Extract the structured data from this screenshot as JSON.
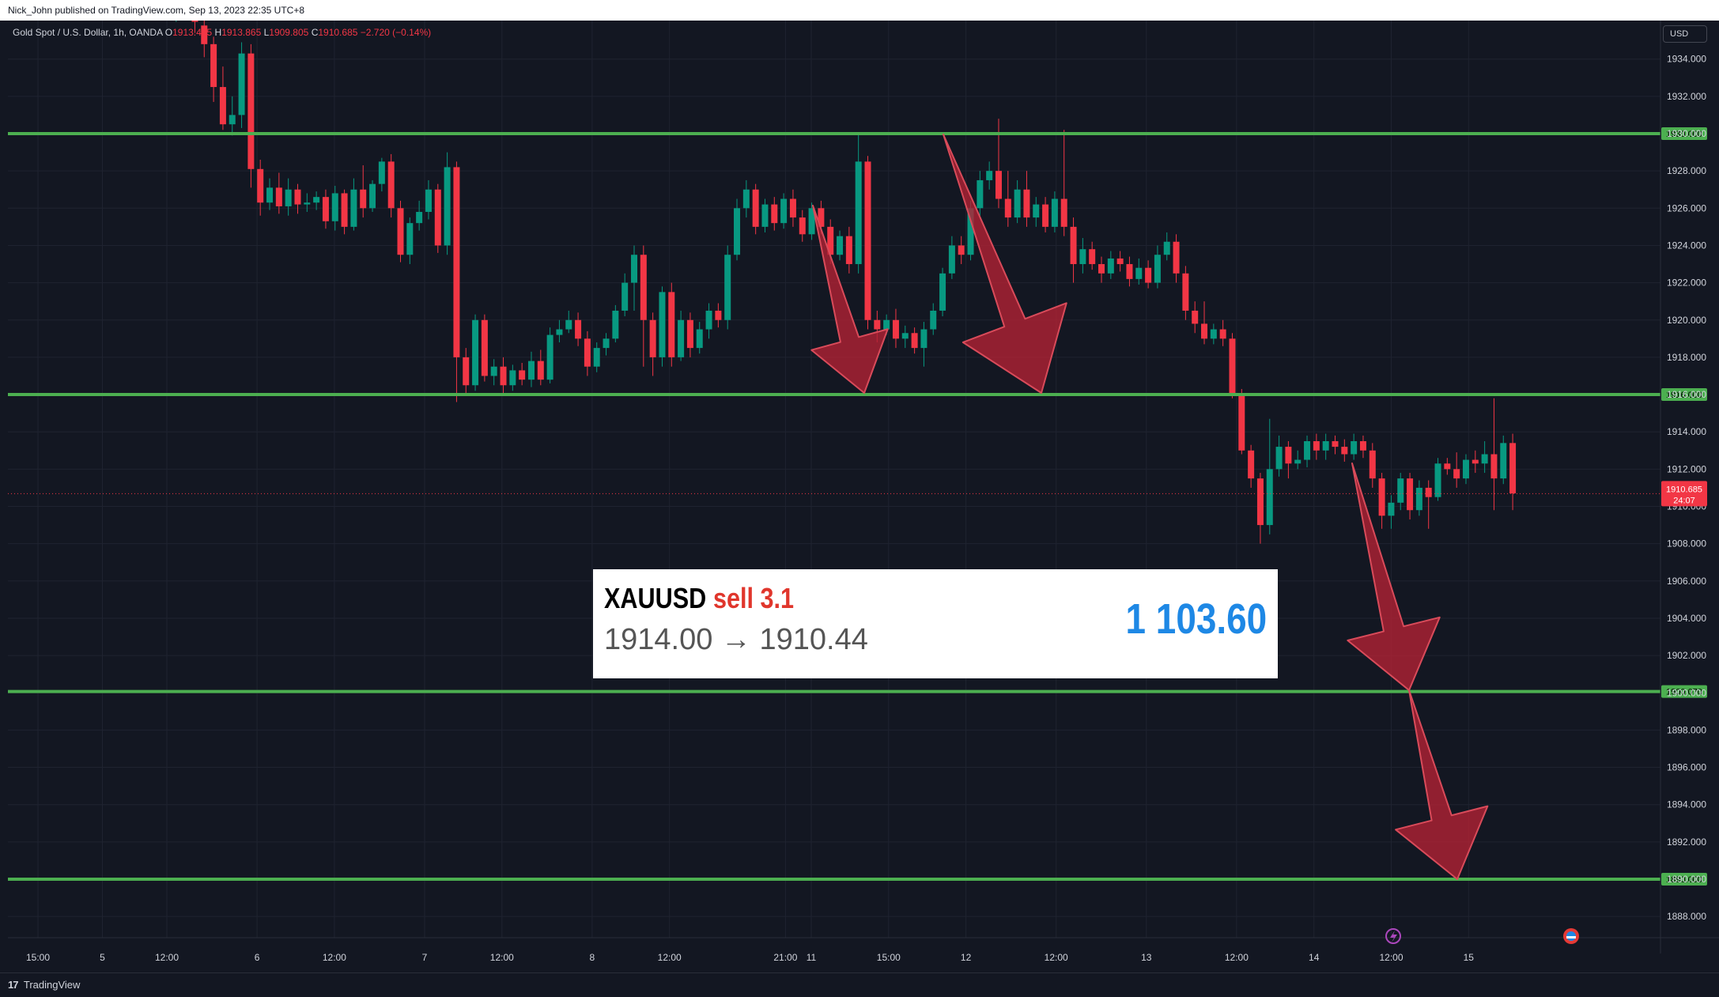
{
  "header": {
    "publisher_line": "Nick_John published on TradingView.com, Sep 13, 2023 22:35 UTC+8",
    "symbol_name": "Gold Spot / U.S. Dollar, 1h, OANDA",
    "o_label": "O",
    "o_value": "1913.405",
    "h_label": "H",
    "h_value": "1913.865",
    "l_label": "L",
    "l_value": "1909.805",
    "c_label": "C",
    "c_value": "1910.685",
    "change": "−2.720 (−0.14%)",
    "currency": "USD"
  },
  "footer": {
    "brand": "TradingView",
    "logo": "17"
  },
  "trade": {
    "symbol": "XAUUSD",
    "side": "sell 3.1",
    "prices": "1914.00 → 1910.44",
    "pnl": "1 103.60"
  },
  "colors": {
    "background": "#131722",
    "up": "#089981",
    "down": "#f23645",
    "level_line": "#4caf50",
    "arrow": "#b22234",
    "text": "#d1d4dc"
  },
  "chart_data": {
    "type": "candlestick",
    "instrument": "XAUUSD",
    "timeframe": "1h",
    "ylim": [
      1886.8,
      1935.0
    ],
    "y_ticks": [
      "1934.000",
      "1932.000",
      "1930.000",
      "1928.000",
      "1926.000",
      "1924.000",
      "1922.000",
      "1920.000",
      "1918.000",
      "1916.000",
      "1914.000",
      "1912.000",
      "1910.000",
      "1908.000",
      "1906.000",
      "1904.000",
      "1902.000",
      "1900.000",
      "1898.000",
      "1896.000",
      "1894.000",
      "1892.000",
      "1890.000",
      "1888.000"
    ],
    "x_ticks": [
      {
        "label": "15:00",
        "i": 0
      },
      {
        "label": "5",
        "i": 5
      },
      {
        "label": "12:00",
        "i": 10
      },
      {
        "label": "6",
        "i": 17
      },
      {
        "label": "12:00",
        "i": 23
      },
      {
        "label": "7",
        "i": 30
      },
      {
        "label": "12:00",
        "i": 36
      },
      {
        "label": "8",
        "i": 43
      },
      {
        "label": "12:00",
        "i": 49
      },
      {
        "label": "21:00",
        "i": 58
      },
      {
        "label": "11",
        "i": 60
      },
      {
        "label": "15:00",
        "i": 66
      },
      {
        "label": "12",
        "i": 72
      },
      {
        "label": "12:00",
        "i": 79
      },
      {
        "label": "13",
        "i": 86
      },
      {
        "label": "12:00",
        "i": 93
      },
      {
        "label": "14",
        "i": 99
      },
      {
        "label": "12:00",
        "i": 105
      },
      {
        "label": "15",
        "i": 111
      }
    ],
    "horizontal_levels": [
      {
        "price": 1930.0,
        "label": "1930.000"
      },
      {
        "price": 1916.0,
        "label": "1916.000"
      },
      {
        "price": 1900.07,
        "label": "1900.070"
      },
      {
        "price": 1890.0,
        "label": "1890.000"
      }
    ],
    "last_price": {
      "price": 1910.685,
      "label": "1910.685",
      "countdown": "24:07"
    },
    "candles": [
      [
        1937.0,
        1936.5,
        1937.6,
        1936.1
      ],
      [
        1936.5,
        1936.8,
        1937.5,
        1936.0
      ],
      [
        1936.8,
        1936.6,
        1937.3,
        1936.1
      ],
      [
        1936.6,
        1936.0,
        1937.1,
        1935.4
      ],
      [
        1935.8,
        1934.8,
        1936.6,
        1934.1
      ],
      [
        1934.8,
        1932.5,
        1935.2,
        1931.7
      ],
      [
        1932.5,
        1930.5,
        1933.6,
        1930.2
      ],
      [
        1930.5,
        1931.0,
        1932.0,
        1929.9
      ],
      [
        1931.0,
        1934.3,
        1934.9,
        1930.3
      ],
      [
        1934.3,
        1928.1,
        1934.8,
        1927.1
      ],
      [
        1928.1,
        1926.3,
        1928.6,
        1925.6
      ],
      [
        1926.3,
        1927.1,
        1927.6,
        1925.9
      ],
      [
        1927.1,
        1926.1,
        1927.9,
        1925.7
      ],
      [
        1926.1,
        1927.0,
        1927.6,
        1925.6
      ],
      [
        1927.0,
        1926.2,
        1927.3,
        1925.7
      ],
      [
        1926.2,
        1926.3,
        1926.8,
        1925.8
      ],
      [
        1926.3,
        1926.6,
        1926.9,
        1925.9
      ],
      [
        1926.6,
        1925.3,
        1927.0,
        1924.9
      ],
      [
        1925.3,
        1926.8,
        1927.2,
        1924.8
      ],
      [
        1926.8,
        1925.0,
        1927.0,
        1924.6
      ],
      [
        1925.0,
        1927.0,
        1927.6,
        1924.8
      ],
      [
        1927.0,
        1926.0,
        1928.3,
        1925.5
      ],
      [
        1926.0,
        1927.3,
        1927.5,
        1925.8
      ],
      [
        1927.3,
        1928.5,
        1928.7,
        1926.9
      ],
      [
        1928.5,
        1926.0,
        1928.9,
        1925.5
      ],
      [
        1926.0,
        1923.5,
        1926.4,
        1923.1
      ],
      [
        1923.5,
        1925.2,
        1925.5,
        1923.0
      ],
      [
        1925.2,
        1925.8,
        1926.4,
        1924.8
      ],
      [
        1925.8,
        1927.0,
        1927.5,
        1925.4
      ],
      [
        1927.0,
        1924.0,
        1927.3,
        1923.6
      ],
      [
        1924.0,
        1928.2,
        1929.0,
        1923.5
      ],
      [
        1928.2,
        1918.0,
        1928.5,
        1915.6
      ],
      [
        1918.0,
        1916.5,
        1918.5,
        1916.0
      ],
      [
        1916.5,
        1920.0,
        1920.3,
        1916.2
      ],
      [
        1920.0,
        1917.0,
        1920.3,
        1916.7
      ],
      [
        1917.0,
        1917.5,
        1917.9,
        1916.5
      ],
      [
        1917.5,
        1916.5,
        1918.0,
        1916.0
      ],
      [
        1916.5,
        1917.3,
        1917.6,
        1916.2
      ],
      [
        1917.3,
        1916.8,
        1917.7,
        1916.5
      ],
      [
        1916.8,
        1917.8,
        1918.3,
        1916.4
      ],
      [
        1917.8,
        1916.8,
        1918.4,
        1916.5
      ],
      [
        1916.8,
        1919.2,
        1919.6,
        1916.6
      ],
      [
        1919.2,
        1919.5,
        1920.0,
        1918.8
      ],
      [
        1919.5,
        1920.0,
        1920.5,
        1919.3
      ],
      [
        1920.0,
        1919.0,
        1920.4,
        1918.6
      ],
      [
        1919.0,
        1917.5,
        1919.4,
        1917.0
      ],
      [
        1917.5,
        1918.5,
        1918.8,
        1917.2
      ],
      [
        1918.5,
        1919.0,
        1919.3,
        1918.1
      ],
      [
        1919.0,
        1920.5,
        1920.8,
        1918.8
      ],
      [
        1920.5,
        1922.0,
        1922.5,
        1920.2
      ],
      [
        1922.0,
        1923.5,
        1924.0,
        1920.5
      ],
      [
        1923.5,
        1920.0,
        1924.0,
        1917.5
      ],
      [
        1920.0,
        1918.0,
        1920.4,
        1917.0
      ],
      [
        1918.0,
        1921.5,
        1921.8,
        1917.5
      ],
      [
        1921.5,
        1918.0,
        1922.0,
        1917.5
      ],
      [
        1918.0,
        1920.0,
        1920.5,
        1917.8
      ],
      [
        1920.0,
        1918.5,
        1920.4,
        1918.0
      ],
      [
        1918.5,
        1919.5,
        1919.9,
        1918.2
      ],
      [
        1919.5,
        1920.5,
        1920.9,
        1919.0
      ],
      [
        1920.5,
        1920.0,
        1920.9,
        1919.6
      ],
      [
        1920.0,
        1923.5,
        1924.0,
        1919.5
      ],
      [
        1923.5,
        1926.0,
        1926.5,
        1923.2
      ],
      [
        1926.0,
        1927.0,
        1927.5,
        1925.5
      ],
      [
        1927.0,
        1925.0,
        1927.3,
        1924.6
      ],
      [
        1925.0,
        1926.2,
        1926.5,
        1924.7
      ],
      [
        1926.2,
        1925.2,
        1926.6,
        1924.8
      ],
      [
        1925.2,
        1926.5,
        1926.8,
        1924.9
      ],
      [
        1926.5,
        1925.5,
        1927.0,
        1925.0
      ],
      [
        1925.5,
        1924.6,
        1925.9,
        1924.2
      ],
      [
        1924.6,
        1926.0,
        1926.3,
        1924.3
      ],
      [
        1926.0,
        1925.0,
        1926.4,
        1924.6
      ],
      [
        1925.0,
        1923.5,
        1925.4,
        1923.0
      ],
      [
        1923.5,
        1924.5,
        1924.8,
        1923.2
      ],
      [
        1924.5,
        1923.0,
        1925.0,
        1922.5
      ],
      [
        1923.0,
        1928.5,
        1930.0,
        1922.5
      ],
      [
        1928.5,
        1920.0,
        1928.8,
        1919.5
      ],
      [
        1920.0,
        1919.5,
        1920.5,
        1918.8
      ],
      [
        1919.5,
        1920.0,
        1920.3,
        1919.2
      ],
      [
        1920.0,
        1919.0,
        1920.6,
        1918.5
      ],
      [
        1919.0,
        1919.3,
        1919.7,
        1918.5
      ],
      [
        1919.3,
        1918.5,
        1919.6,
        1918.2
      ],
      [
        1918.5,
        1919.5,
        1919.9,
        1917.5
      ],
      [
        1919.5,
        1920.5,
        1920.9,
        1919.2
      ],
      [
        1920.5,
        1922.5,
        1922.8,
        1920.2
      ],
      [
        1922.5,
        1924.0,
        1924.5,
        1922.2
      ],
      [
        1924.0,
        1923.5,
        1924.5,
        1923.0
      ],
      [
        1923.5,
        1926.0,
        1926.4,
        1923.2
      ],
      [
        1926.0,
        1927.5,
        1928.0,
        1925.6
      ],
      [
        1927.5,
        1928.0,
        1928.5,
        1927.0
      ],
      [
        1928.0,
        1926.5,
        1930.8,
        1926.0
      ],
      [
        1926.5,
        1925.5,
        1928.0,
        1925.0
      ],
      [
        1925.5,
        1927.0,
        1927.5,
        1925.2
      ],
      [
        1927.0,
        1925.5,
        1928.0,
        1925.0
      ],
      [
        1925.5,
        1926.2,
        1926.6,
        1925.0
      ],
      [
        1926.2,
        1925.0,
        1926.6,
        1924.7
      ],
      [
        1925.0,
        1926.5,
        1926.9,
        1924.7
      ],
      [
        1926.5,
        1925.0,
        1930.2,
        1924.5
      ],
      [
        1925.0,
        1923.0,
        1925.5,
        1922.0
      ],
      [
        1923.0,
        1923.8,
        1924.4,
        1922.5
      ],
      [
        1923.8,
        1923.0,
        1924.2,
        1922.7
      ],
      [
        1923.0,
        1922.5,
        1923.4,
        1922.0
      ],
      [
        1922.5,
        1923.3,
        1923.7,
        1922.2
      ],
      [
        1923.3,
        1923.0,
        1923.7,
        1922.6
      ],
      [
        1923.0,
        1922.2,
        1923.4,
        1921.8
      ],
      [
        1922.2,
        1922.8,
        1923.3,
        1921.9
      ],
      [
        1922.8,
        1922.0,
        1923.2,
        1921.7
      ],
      [
        1922.0,
        1923.5,
        1924.0,
        1921.7
      ],
      [
        1923.5,
        1924.2,
        1924.7,
        1923.2
      ],
      [
        1924.2,
        1922.5,
        1924.6,
        1922.0
      ],
      [
        1922.5,
        1920.5,
        1922.9,
        1920.0
      ],
      [
        1920.5,
        1919.8,
        1921.0,
        1919.3
      ],
      [
        1919.8,
        1919.0,
        1921.0,
        1918.7
      ],
      [
        1919.0,
        1919.5,
        1919.8,
        1918.7
      ],
      [
        1919.5,
        1919.0,
        1920.0,
        1918.6
      ],
      [
        1919.0,
        1916.0,
        1919.3,
        1915.8
      ],
      [
        1916.0,
        1913.0,
        1916.3,
        1912.8
      ],
      [
        1913.0,
        1911.5,
        1913.3,
        1911.0
      ],
      [
        1911.5,
        1909.0,
        1911.8,
        1908.0
      ],
      [
        1909.0,
        1912.0,
        1914.7,
        1908.5
      ],
      [
        1912.0,
        1913.2,
        1913.8,
        1911.6
      ],
      [
        1913.2,
        1912.3,
        1913.5,
        1911.5
      ],
      [
        1912.3,
        1912.5,
        1913.0,
        1912.0
      ],
      [
        1912.5,
        1913.5,
        1913.8,
        1912.1
      ],
      [
        1913.5,
        1913.0,
        1913.9,
        1912.5
      ],
      [
        1913.0,
        1913.5,
        1913.9,
        1912.5
      ],
      [
        1913.5,
        1913.2,
        1913.8,
        1912.8
      ],
      [
        1913.2,
        1912.8,
        1913.6,
        1912.4
      ],
      [
        1912.8,
        1913.5,
        1913.9,
        1912.5
      ],
      [
        1913.5,
        1913.0,
        1913.8,
        1912.6
      ],
      [
        1913.0,
        1911.5,
        1913.4,
        1911.0
      ],
      [
        1911.5,
        1909.5,
        1911.8,
        1908.8
      ],
      [
        1909.5,
        1910.2,
        1910.6,
        1908.8
      ],
      [
        1910.2,
        1911.5,
        1911.8,
        1909.8
      ],
      [
        1911.5,
        1909.8,
        1911.8,
        1909.3
      ],
      [
        1909.8,
        1911.0,
        1911.4,
        1909.5
      ],
      [
        1911.0,
        1910.5,
        1911.4,
        1908.8
      ],
      [
        1910.5,
        1912.3,
        1912.6,
        1910.3
      ],
      [
        1912.3,
        1912.0,
        1912.6,
        1911.7
      ],
      [
        1912.0,
        1911.5,
        1912.9,
        1911.0
      ],
      [
        1911.5,
        1912.5,
        1912.8,
        1911.2
      ],
      [
        1912.5,
        1912.3,
        1913.0,
        1911.8
      ],
      [
        1912.3,
        1912.8,
        1913.5,
        1911.8
      ],
      [
        1912.8,
        1911.5,
        1915.8,
        1909.8
      ],
      [
        1911.5,
        1913.4,
        1913.8,
        1911.2
      ],
      [
        1913.4,
        1910.7,
        1913.9,
        1909.8
      ]
    ]
  }
}
